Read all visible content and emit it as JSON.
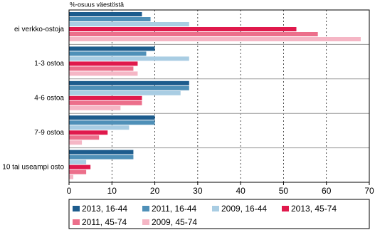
{
  "chart_data": {
    "type": "hbar",
    "axis_title": "%-osuus väestöstä",
    "categories": [
      "ei verkko-ostoja",
      "1-3 ostoa",
      "4-6 ostoa",
      "7-9 ostoa",
      "10 tai useampi osto"
    ],
    "series": [
      {
        "name": "2013, 16-44",
        "color": "#1d5c8d",
        "values": [
          17,
          20,
          28,
          20,
          15
        ]
      },
      {
        "name": "2011, 16-44",
        "color": "#4f90b8",
        "values": [
          19,
          18,
          28,
          20,
          15
        ]
      },
      {
        "name": "2009, 16-44",
        "color": "#a9cde3",
        "values": [
          28,
          28,
          26,
          14,
          4
        ]
      },
      {
        "name": "2013, 45-74",
        "color": "#e0194c",
        "values": [
          53,
          16,
          17,
          9,
          5
        ]
      },
      {
        "name": "2011, 45-74",
        "color": "#ec6f8b",
        "values": [
          58,
          15,
          17,
          7,
          4
        ]
      },
      {
        "name": "2009, 45-74",
        "color": "#f5b6c5",
        "values": [
          68,
          16,
          12,
          3,
          1
        ]
      }
    ],
    "xlim": [
      0,
      70
    ],
    "xticks": [
      0,
      10,
      20,
      30,
      40,
      50,
      60,
      70
    ],
    "grid": true
  }
}
